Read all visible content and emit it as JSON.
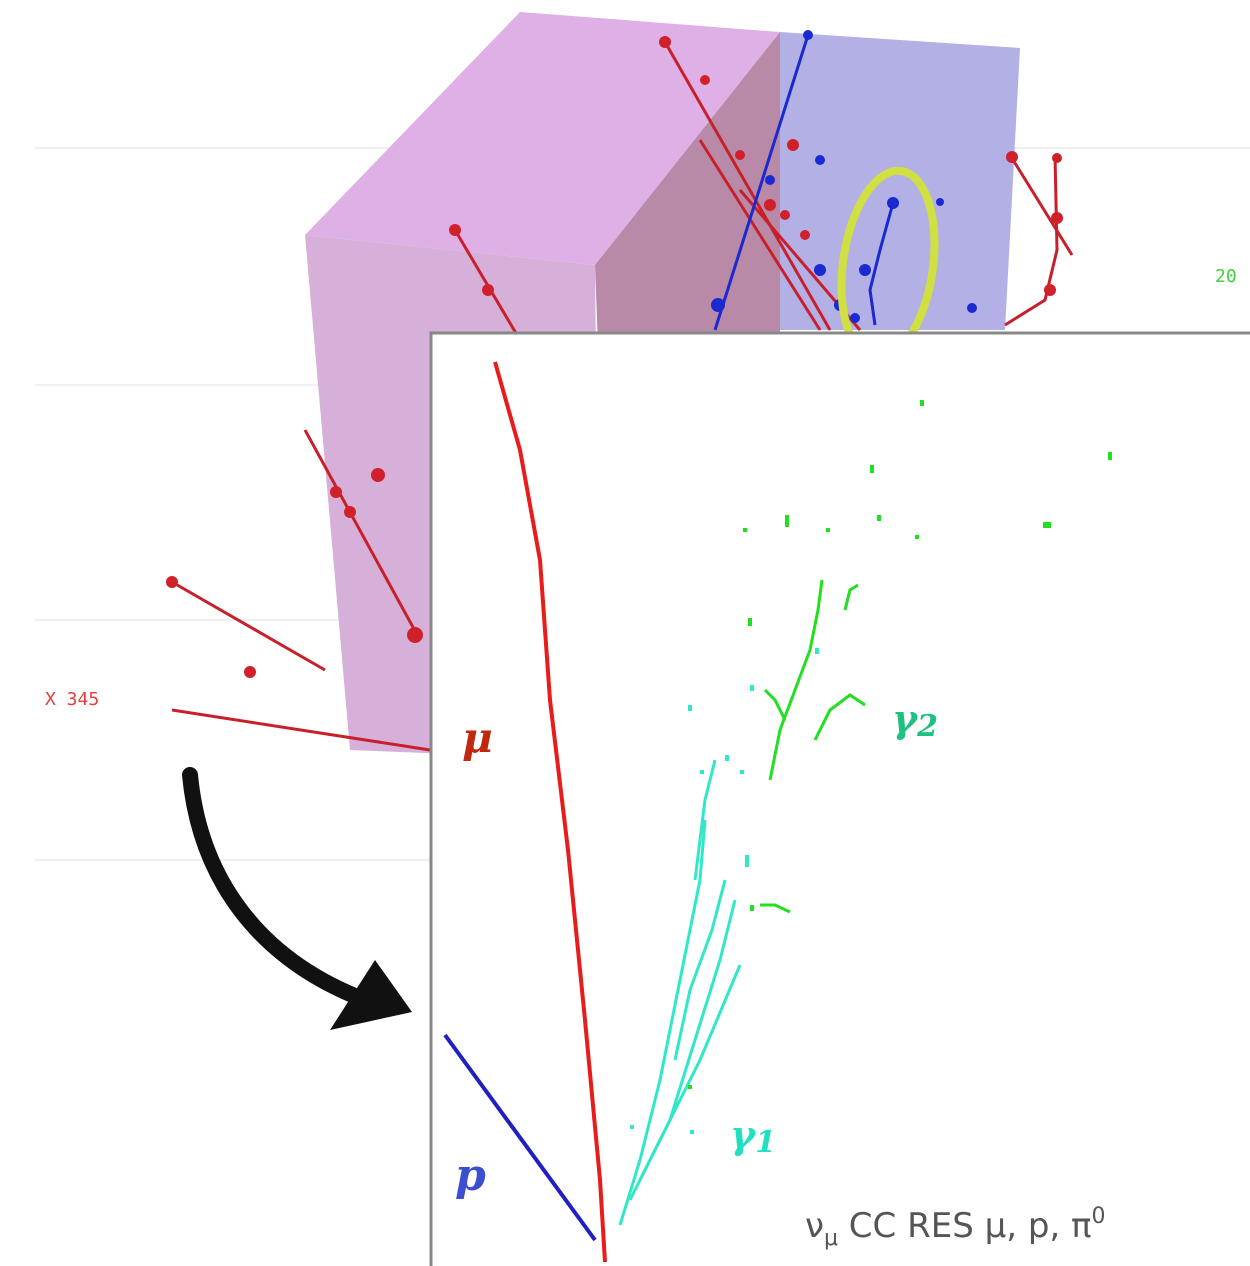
{
  "background_view": {
    "axis_label": "X 345",
    "edge_label": "20"
  },
  "inset": {
    "labels": {
      "muon": "μ",
      "proton": "p",
      "gamma_2": "γ",
      "gamma_2_index": "2",
      "gamma_1": "γ",
      "gamma_1_index": "1"
    },
    "caption": {
      "neutrino": "ν",
      "flavor": "μ",
      "text": " CC RES μ, p, π",
      "charge": "0"
    }
  }
}
